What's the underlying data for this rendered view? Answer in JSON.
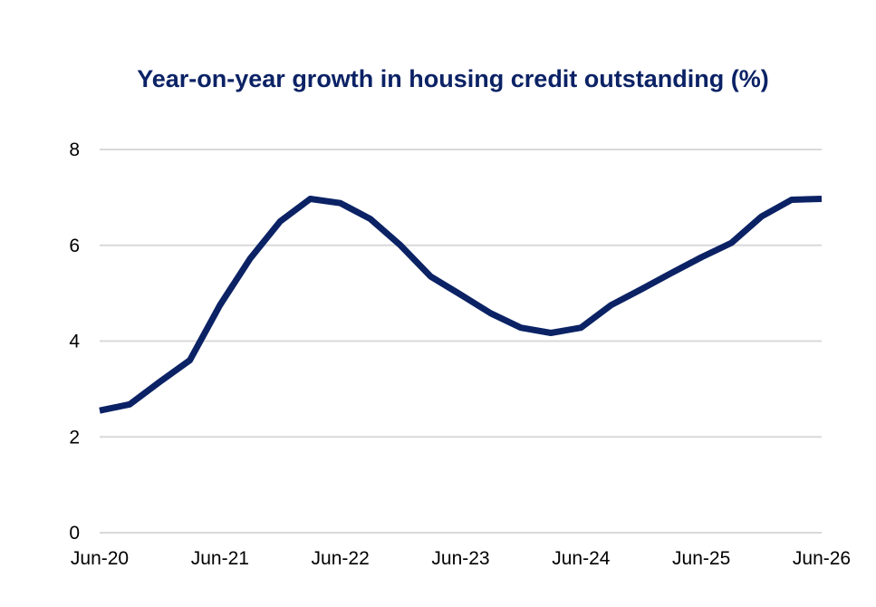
{
  "chart_data": {
    "type": "line",
    "title": "Year-on-year growth in housing credit outstanding (%)",
    "xlabel": "",
    "ylabel": "",
    "ylim": [
      0,
      8
    ],
    "y_ticks": [
      0,
      2,
      4,
      6,
      8
    ],
    "x_ticks": [
      "Jun-20",
      "Jun-21",
      "Jun-22",
      "Jun-23",
      "Jun-24",
      "Jun-25",
      "Jun-26"
    ],
    "grid": true,
    "line_color": "#0b2265",
    "series": [
      {
        "x": [
          "Jun-20",
          "Sep-20",
          "Dec-20",
          "Mar-21",
          "Jun-21",
          "Sep-21",
          "Dec-21",
          "Mar-22",
          "Jun-22",
          "Sep-22",
          "Dec-22",
          "Mar-23",
          "Jun-23",
          "Sep-23",
          "Dec-23",
          "Mar-24",
          "Jun-24",
          "Sep-24",
          "Dec-24",
          "Mar-25",
          "Jun-25",
          "Sep-25",
          "Dec-25",
          "Mar-26",
          "Jun-26"
        ],
        "values": [
          2.55,
          2.68,
          3.15,
          3.6,
          4.75,
          5.72,
          6.5,
          6.97,
          6.88,
          6.55,
          6.0,
          5.35,
          4.97,
          4.58,
          4.28,
          4.17,
          4.28,
          4.75,
          5.08,
          5.42,
          5.75,
          6.05,
          6.6,
          6.95,
          6.97
        ]
      }
    ]
  }
}
